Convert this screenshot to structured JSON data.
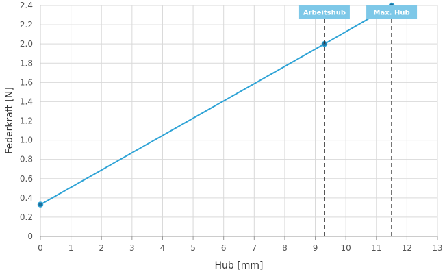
{
  "chart_data": {
    "type": "line",
    "title": "",
    "xlabel": "Hub [mm]",
    "ylabel": "Federkraft [N]",
    "xlim": [
      0,
      13
    ],
    "ylim": [
      0,
      2.4
    ],
    "x_ticks": [
      "0",
      "1",
      "2",
      "3",
      "4",
      "5",
      "6",
      "7",
      "8",
      "9",
      "10",
      "11",
      "12",
      "13"
    ],
    "y_ticks": [
      "0",
      "0.2",
      "0.4",
      "0.6",
      "0.8",
      "1.0",
      "1.2",
      "1.4",
      "1.6",
      "1.8",
      "2.0",
      "2.2",
      "2.4"
    ],
    "grid": true,
    "legend": "none",
    "series": [
      {
        "color": "#2ea3d6",
        "x": [
          0,
          9.3,
          11.5
        ],
        "y": [
          0.33,
          2.0,
          2.4
        ]
      }
    ],
    "markers": [
      {
        "label": "Arbeitshub",
        "x": 9.3
      },
      {
        "label": "Max. Hub",
        "x": 11.5
      }
    ],
    "marker_color": "#7ec8e8"
  }
}
